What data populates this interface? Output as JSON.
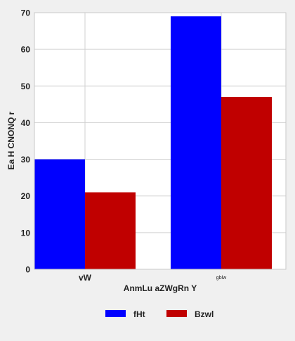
{
  "chart_data": {
    "type": "bar",
    "title": "",
    "xlabel": "AnmLu aZWgRn Y",
    "ylabel": "Ea H  CNONQ r",
    "categories": [
      "vW",
      "gblw"
    ],
    "series": [
      {
        "name": "fHt",
        "values": [
          30,
          69
        ],
        "color": "#0000ff"
      },
      {
        "name": "Bzwl",
        "values": [
          21,
          47
        ],
        "color": "#c00000"
      }
    ],
    "ylim": [
      0,
      70
    ],
    "yticks": [
      0,
      10,
      20,
      30,
      40,
      50,
      60,
      70
    ],
    "grid": true,
    "legend_position": "bottom-center"
  }
}
